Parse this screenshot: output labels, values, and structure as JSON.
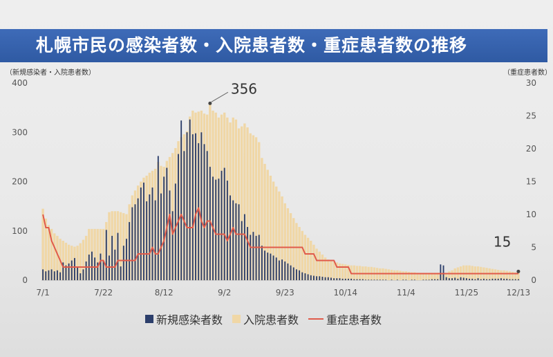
{
  "title": "札幌市民の感染者数・入院患者数・重症患者数の推移",
  "colors": {
    "title_bg": "#2f5aa3",
    "new_cases": "#2c3e6b",
    "hospitalized": "#f0d7a6",
    "severe": "#e05a4a"
  },
  "chart_data": {
    "type": "bar",
    "left_axis_title": "（新規感染者・入院患者数）",
    "right_axis_title": "（重症患者数）",
    "x_tick_labels": [
      "7/1",
      "7/22",
      "8/12",
      "9/2",
      "9/23",
      "10/14",
      "11/4",
      "11/25",
      "12/13"
    ],
    "x_tick_day_offsets": [
      0,
      21,
      42,
      63,
      84,
      105,
      126,
      147,
      165
    ],
    "ylim_left": [
      0,
      400
    ],
    "y_ticks_left": [
      0,
      100,
      200,
      300,
      400
    ],
    "ylim_right": [
      0,
      30
    ],
    "y_ticks_right": [
      0,
      5,
      10,
      15,
      20,
      25,
      30
    ],
    "annotations": [
      {
        "text": "356",
        "series": "入院患者数",
        "day_offset": 58,
        "value": 356
      },
      {
        "text": "15",
        "series": "入院患者数",
        "day_offset": 165,
        "value": 15
      }
    ],
    "legend": [
      "新規感染者数",
      "入院患者数",
      "重症患者数"
    ],
    "series": [
      {
        "name": "入院患者数",
        "axis": "left",
        "values": [
          145,
          125,
          112,
          104,
          95,
          90,
          84,
          80,
          76,
          72,
          70,
          68,
          70,
          75,
          82,
          90,
          104,
          104,
          104,
          104,
          104,
          104,
          118,
          138,
          140,
          140,
          140,
          138,
          136,
          134,
          154,
          172,
          182,
          192,
          200,
          208,
          212,
          218,
          222,
          226,
          240,
          232,
          230,
          242,
          250,
          258,
          268,
          282,
          290,
          296,
          302,
          332,
          344,
          340,
          342,
          344,
          338,
          336,
          356,
          344,
          340,
          330,
          336,
          340,
          330,
          320,
          330,
          326,
          308,
          312,
          318,
          310,
          298,
          294,
          290,
          280,
          248,
          236,
          224,
          212,
          200,
          190,
          180,
          170,
          156,
          146,
          136,
          126,
          116,
          108,
          100,
          92,
          86,
          80,
          72,
          64,
          58,
          52,
          46,
          42,
          40,
          38,
          36,
          34,
          33,
          32,
          31,
          30,
          30,
          29,
          29,
          28,
          28,
          27,
          27,
          26,
          25,
          24,
          24,
          23,
          22,
          21,
          20,
          20,
          19,
          18,
          18,
          17,
          16,
          16,
          15,
          15,
          15,
          15,
          15,
          15,
          15,
          15,
          15,
          15,
          15,
          18,
          20,
          24,
          26,
          28,
          30,
          30,
          30,
          29,
          28,
          28,
          27,
          26,
          25,
          24,
          23,
          22,
          21,
          20,
          20,
          19,
          18,
          17,
          16,
          15
        ]
      },
      {
        "name": "新規感染者数",
        "axis": "left",
        "values": [
          22,
          18,
          20,
          22,
          18,
          20,
          16,
          36,
          30,
          34,
          40,
          45,
          28,
          14,
          22,
          38,
          52,
          58,
          46,
          36,
          54,
          40,
          102,
          50,
          90,
          62,
          96,
          28,
          70,
          84,
          118,
          148,
          154,
          166,
          188,
          198,
          160,
          174,
          188,
          162,
          252,
          176,
          210,
          228,
          182,
          140,
          196,
          256,
          324,
          262,
          300,
          326,
          296,
          298,
          278,
          300,
          276,
          262,
          230,
          210,
          204,
          206,
          222,
          228,
          202,
          172,
          162,
          156,
          154,
          120,
          134,
          108,
          92,
          98,
          90,
          92,
          70,
          60,
          56,
          54,
          50,
          46,
          40,
          42,
          38,
          34,
          30,
          26,
          22,
          20,
          16,
          14,
          12,
          10,
          9,
          8,
          8,
          7,
          6,
          6,
          5,
          4,
          4,
          4,
          3,
          3,
          3,
          3,
          2,
          2,
          2,
          2,
          1,
          1,
          1,
          1,
          1,
          1,
          1,
          1,
          0,
          1,
          0,
          1,
          0,
          1,
          1,
          0,
          1,
          1,
          0,
          0,
          1,
          1,
          1,
          2,
          2,
          2,
          32,
          30,
          6,
          4,
          4,
          5,
          3,
          6,
          5,
          4,
          3,
          3,
          2,
          4,
          2,
          3,
          2,
          2,
          3,
          3,
          3,
          4,
          3,
          3,
          2,
          2,
          2,
          2
        ]
      },
      {
        "name": "重症患者数",
        "axis": "right",
        "values": [
          10,
          8,
          8,
          6,
          5,
          4,
          3,
          2,
          2,
          2,
          2,
          2,
          2,
          2,
          2,
          2,
          2,
          2,
          2,
          2,
          3,
          3,
          2,
          2,
          2,
          2,
          3,
          3,
          3,
          3,
          3,
          3,
          3,
          4,
          4,
          4,
          4,
          4,
          5,
          4,
          4,
          5,
          6,
          8,
          10,
          7,
          8,
          9,
          10,
          9,
          8,
          8,
          8,
          10,
          11,
          9,
          8,
          9,
          9,
          8,
          7,
          7,
          7,
          7,
          6,
          7,
          8,
          7,
          7,
          7,
          7,
          6,
          5,
          5,
          5,
          5,
          5,
          5,
          5,
          5,
          5,
          5,
          5,
          5,
          5,
          5,
          5,
          5,
          5,
          5,
          5,
          4,
          4,
          4,
          4,
          3,
          3,
          3,
          3,
          3,
          3,
          3,
          2,
          2,
          2,
          2,
          2,
          1,
          1,
          1,
          1,
          1,
          1,
          1,
          1,
          1,
          1,
          1,
          1,
          1,
          1,
          1,
          1,
          1,
          1,
          1,
          1,
          1,
          1,
          1,
          1,
          1,
          1,
          1,
          1,
          1,
          1,
          1,
          1,
          1,
          1,
          1,
          1,
          1,
          1,
          1,
          1,
          1,
          1,
          1,
          1,
          1,
          1,
          1,
          1,
          1,
          1,
          1,
          1,
          1,
          1,
          1,
          1,
          1,
          1,
          1
        ]
      }
    ]
  }
}
